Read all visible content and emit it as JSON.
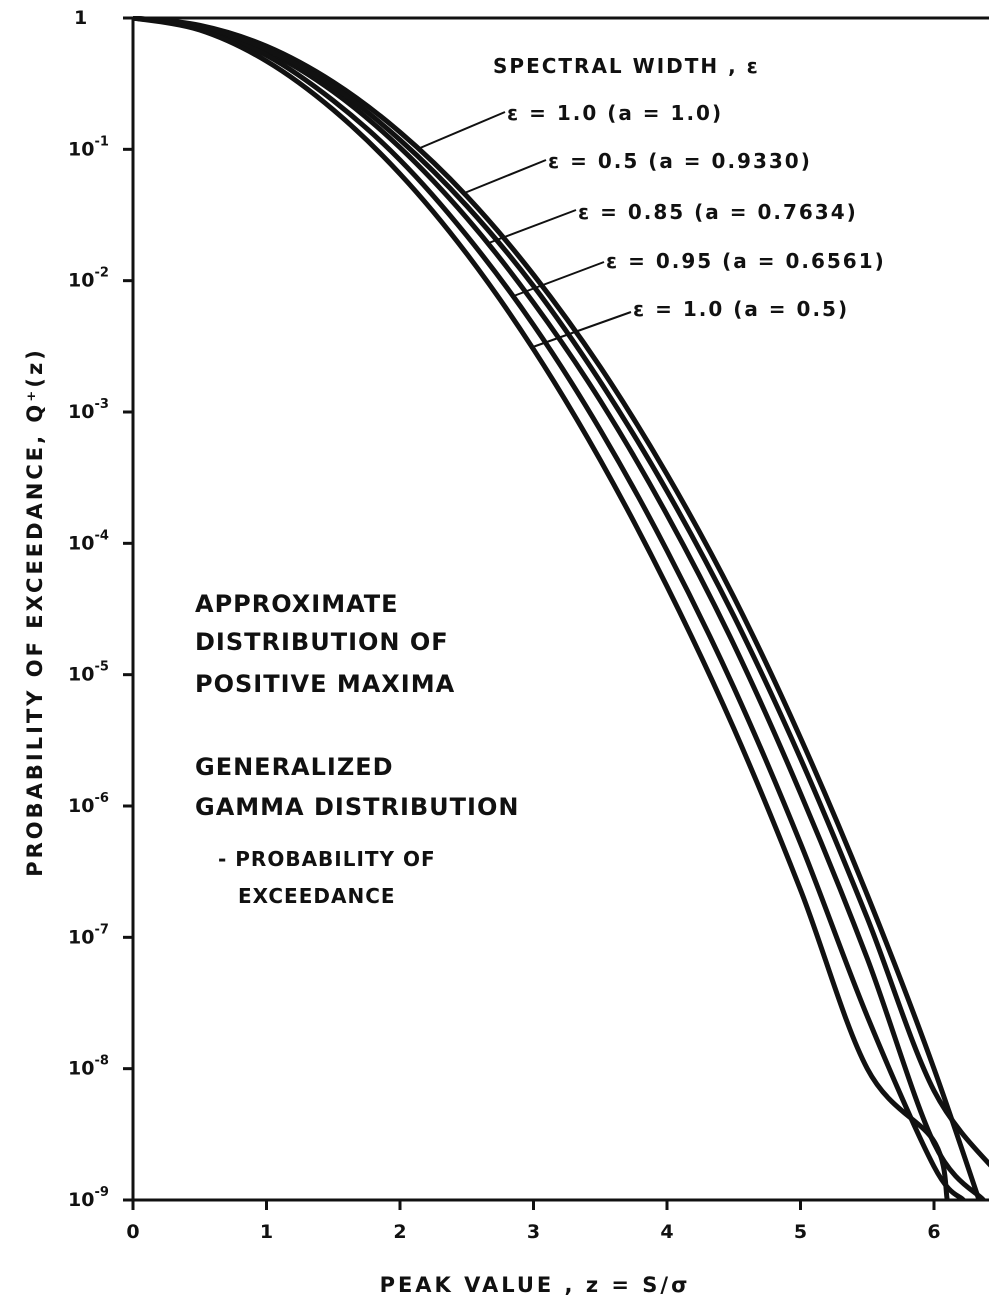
{
  "chart_data": {
    "type": "line",
    "title": "",
    "xlabel": "PEAK  VALUE ,   z = S/σ",
    "ylabel": "PROBABILITY  OF  EXCEEDANCE,  Q⁺(z)",
    "xlim": [
      0,
      6.5
    ],
    "ylim": [
      1e-09,
      1
    ],
    "y_scale": "log",
    "grid": false,
    "x_ticks": [
      "0",
      "1",
      "2",
      "3",
      "4",
      "5",
      "6"
    ],
    "y_ticks": [
      {
        "base": "1",
        "exp": ""
      },
      {
        "base": "10",
        "exp": "-1"
      },
      {
        "base": "10",
        "exp": "-2"
      },
      {
        "base": "10",
        "exp": "-3"
      },
      {
        "base": "10",
        "exp": "-4"
      },
      {
        "base": "10",
        "exp": "-5"
      },
      {
        "base": "10",
        "exp": "-6"
      },
      {
        "base": "10",
        "exp": "-7"
      },
      {
        "base": "10",
        "exp": "-8"
      },
      {
        "base": "10",
        "exp": "-9"
      }
    ],
    "legend_title": "SPECTRAL  WIDTH ,  ε",
    "series": [
      {
        "name": "ε = 1.0  (a = 1.0)",
        "x": [
          0,
          0.5,
          1,
          1.5,
          2,
          2.5,
          3,
          3.5,
          4,
          4.5,
          5,
          5.5,
          6,
          6.5
        ],
        "y": [
          1,
          0.88,
          0.61,
          0.325,
          0.135,
          0.044,
          0.0111,
          0.0022,
          0.000335,
          3.9e-05,
          3.3e-06,
          2.1e-07,
          1e-08,
          3.2e-10
        ]
      },
      {
        "name": "ε = 0.5  (a = 0.9330)",
        "x": [
          0,
          0.5,
          1,
          1.5,
          2,
          2.5,
          3,
          3.5,
          4,
          4.5,
          5,
          5.5,
          6,
          6.37
        ],
        "y": [
          1,
          0.86,
          0.56,
          0.275,
          0.103,
          0.03,
          0.0068,
          0.00122,
          0.000165,
          1.7e-05,
          1.25e-06,
          6.9e-08,
          2.7e-09,
          1e-09
        ]
      },
      {
        "name": "ε = 0.85  (a = 0.7634)",
        "x": [
          0,
          0.5,
          1,
          1.5,
          2,
          2.5,
          3,
          3.5,
          4,
          4.5,
          5,
          5.5,
          6,
          6.22
        ],
        "y": [
          1,
          0.84,
          0.52,
          0.235,
          0.083,
          0.022,
          0.0046,
          0.00073,
          8.8e-05,
          8e-06,
          5.2e-07,
          2.5e-08,
          1.8e-09,
          1e-09
        ]
      },
      {
        "name": "ε = 0.95  (a = 0.6561)",
        "x": [
          0,
          0.5,
          1,
          1.5,
          2,
          2.5,
          3,
          3.5,
          4,
          4.5,
          5,
          5.5,
          6,
          6.1
        ],
        "y": [
          1,
          0.81,
          0.47,
          0.2,
          0.065,
          0.016,
          0.003,
          0.00043,
          4.7e-05,
          3.9e-06,
          2.3e-07,
          1e-08,
          2.8e-09,
          1e-09
        ]
      },
      {
        "name": "ε = 1.0  (a = 0.5)",
        "x": [
          0,
          0.5,
          1,
          1.5,
          2,
          2.5,
          3,
          3.5,
          4,
          4.5,
          5,
          5.5,
          6,
          6.5
        ],
        "y": [
          1,
          0.87,
          0.58,
          0.3,
          0.118,
          0.037,
          0.0091,
          0.0017,
          0.00025,
          2.8e-05,
          2.3e-06,
          1.4e-07,
          6.8e-09,
          1.5e-09
        ]
      }
    ],
    "annotations": {
      "block1": [
        "APPROXIMATE",
        "DISTRIBUTION  OF",
        "POSITIVE  MAXIMA"
      ],
      "block2": [
        "GENERALIZED",
        "GAMMA  DISTRIBUTION"
      ],
      "block3": [
        "- PROBABILITY  OF",
        "EXCEEDANCE"
      ]
    }
  },
  "colors": {
    "ink": "#111111",
    "background": "#ffffff"
  }
}
